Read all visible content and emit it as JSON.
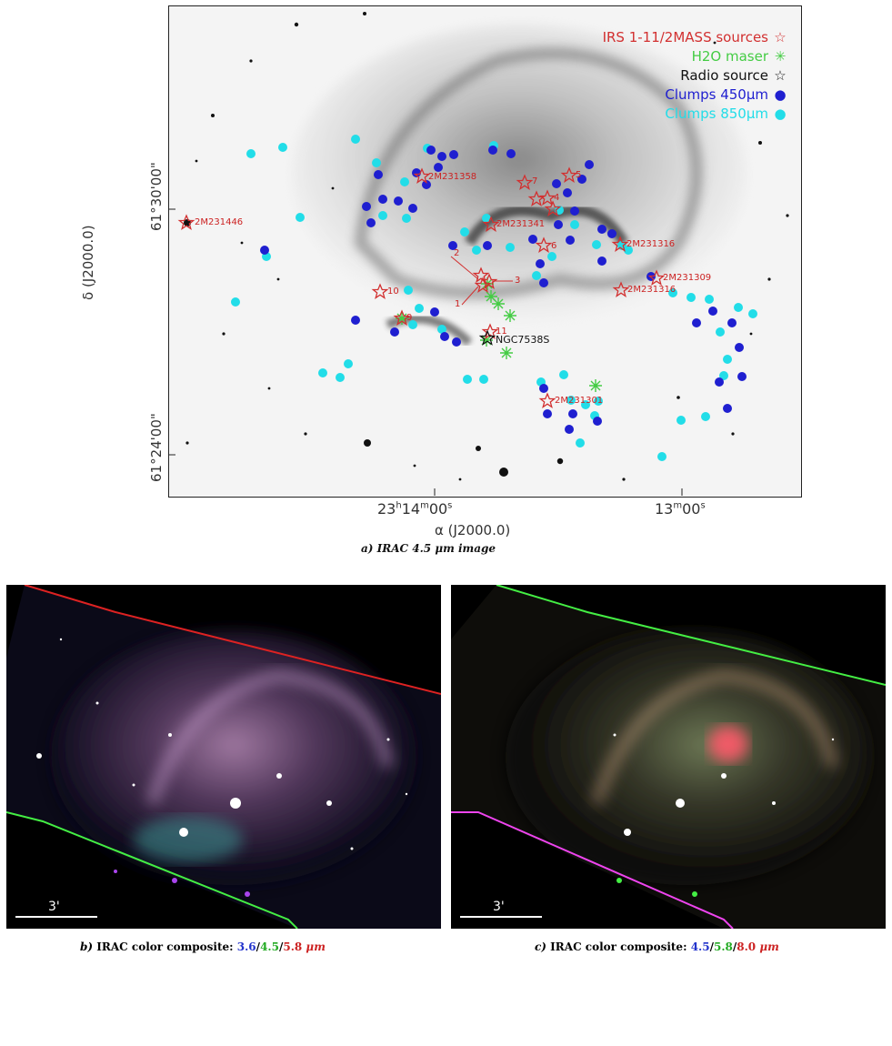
{
  "panel_a": {
    "legend": [
      {
        "text": "IRS 1-11/2MASS sources",
        "symbol": "☆",
        "color": "#d23030"
      },
      {
        "text": "H2O maser",
        "symbol": "✳",
        "color": "#44cc44"
      },
      {
        "text": "Radio source",
        "symbol": "☆",
        "color": "#111111"
      },
      {
        "text": "Clumps 450μm",
        "symbol": "●",
        "color": "#1f1fd0"
      },
      {
        "text": "Clumps 850μm",
        "symbol": "●",
        "color": "#22dde8"
      }
    ],
    "source_labels": [
      "2M231358",
      "7",
      "8",
      "2M231341",
      "2M231446",
      "2M231316",
      "2",
      "3",
      "1",
      "2M231309",
      "10",
      "2M231316",
      "11",
      "2M231301",
      "9",
      "5",
      "4",
      "6"
    ],
    "radio_label": "NGC7538S",
    "y_ticks": [
      "61°30'00\"",
      "61°24'00\""
    ],
    "y_label": "δ (J2000.0)",
    "x_ticks": [
      "23h14m00s",
      "13m00s"
    ],
    "x_label": "α (J2000.0)",
    "caption_prefix": "a)",
    "caption_text": "IRAC 4.5",
    "caption_unit": "μm image"
  },
  "panel_b": {
    "scale": "3'",
    "caption_prefix": "b)",
    "caption_text": "IRAC color composite:",
    "bands": [
      {
        "v": "3.6",
        "c": "#2233cc"
      },
      {
        "v": "4.5",
        "c": "#22aa22"
      },
      {
        "v": "5.8",
        "c": "#cc2222"
      }
    ],
    "unit": "μm"
  },
  "panel_c": {
    "scale": "3'",
    "caption_prefix": "c)",
    "caption_text": "IRAC color composite:",
    "bands": [
      {
        "v": "4.5",
        "c": "#2233cc"
      },
      {
        "v": "5.8",
        "c": "#22aa22"
      },
      {
        "v": "8.0",
        "c": "#cc2222"
      }
    ],
    "unit": "μm"
  }
}
